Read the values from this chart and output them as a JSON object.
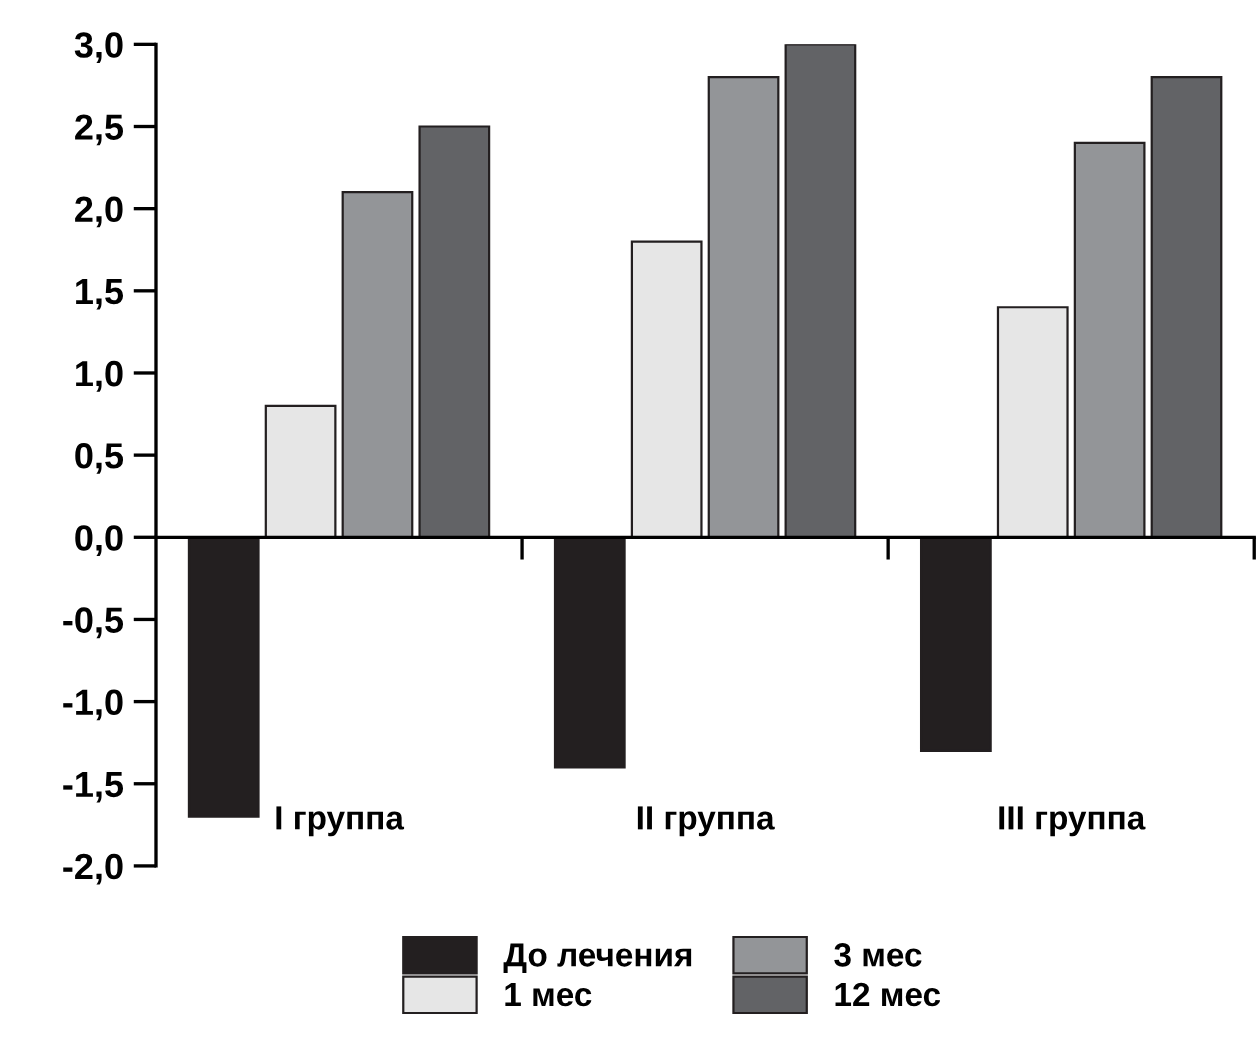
{
  "chart_data": {
    "type": "bar",
    "categories": [
      "I группа",
      "II группа",
      "III группа"
    ],
    "series": [
      {
        "name": "До лечения",
        "color": "#231f20",
        "values": [
          -1.7,
          -1.4,
          -1.3
        ]
      },
      {
        "name": "1 мес",
        "color": "#e6e6e6",
        "values": [
          0.8,
          1.8,
          1.4
        ]
      },
      {
        "name": "3 мес",
        "color": "#939598",
        "values": [
          2.1,
          2.8,
          2.4
        ]
      },
      {
        "name": "12 мес",
        "color": "#626366",
        "values": [
          2.5,
          3.0,
          2.8
        ]
      }
    ],
    "ylim": [
      -2.0,
      3.0
    ],
    "yticks": [
      {
        "value": -2.0,
        "label": "-2,0"
      },
      {
        "value": -1.5,
        "label": "-1,5"
      },
      {
        "value": -1.0,
        "label": "-1,0"
      },
      {
        "value": -0.5,
        "label": "-0,5"
      },
      {
        "value": 0.0,
        "label": "0,0"
      },
      {
        "value": 0.5,
        "label": "0,5"
      },
      {
        "value": 1.0,
        "label": "1,0"
      },
      {
        "value": 1.5,
        "label": "1,5"
      },
      {
        "value": 2.0,
        "label": "2,0"
      },
      {
        "value": 2.5,
        "label": "2,5"
      },
      {
        "value": 3.0,
        "label": "3,0"
      }
    ],
    "legend": "bottom"
  }
}
